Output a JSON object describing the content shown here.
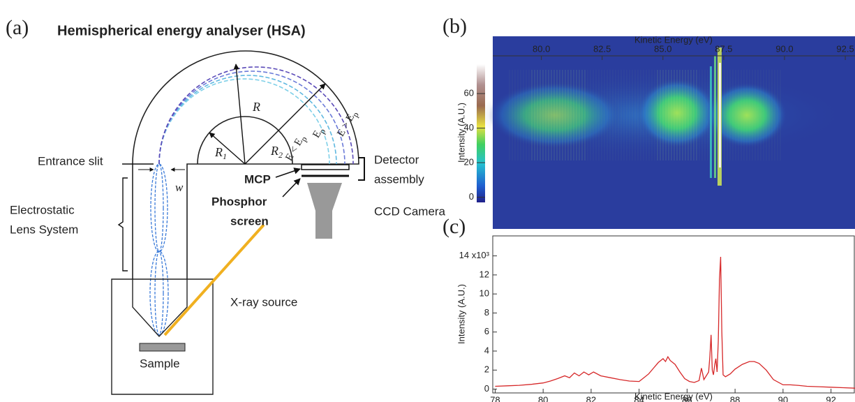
{
  "panel_a": {
    "label": "(a)",
    "title": "Hemispherical energy analyser (HSA)",
    "entrance_slit": "Entrance slit",
    "slit_width": "w",
    "lens_system": [
      "Electrostatic",
      "Lens System"
    ],
    "radius": "R",
    "inner_radius": {
      "main": "R",
      "sub": "1"
    },
    "outer_radius": {
      "main": "R",
      "sub": "2"
    },
    "trajectories": [
      {
        "main": "E < E",
        "sub": "p"
      },
      {
        "main": "E",
        "sub": "p"
      },
      {
        "main": "E > E",
        "sub": "p"
      }
    ],
    "mcp": "MCP",
    "phosphor_screen": [
      "Phosphor",
      "screen"
    ],
    "detector_assembly": [
      "Detector",
      "assembly"
    ],
    "ccd_camera": "CCD Camera",
    "xray_source": "X-ray source",
    "sample": "Sample"
  },
  "chart_data": [
    {
      "type": "heatmap",
      "panel_label": "(b)",
      "xlabel": "Kinetic Energy (eV)",
      "xlim": [
        78,
        92.9
      ],
      "xticks": [
        {
          "value": 80,
          "label": "80.0"
        },
        {
          "value": 82.5,
          "label": "82.5"
        },
        {
          "value": 85,
          "label": "85.0"
        },
        {
          "value": 87.5,
          "label": "87.5"
        },
        {
          "value": 90,
          "label": "90.0"
        },
        {
          "value": 92.5,
          "label": "92.5"
        }
      ],
      "colorbar": {
        "label": "Intensity (A.U.)",
        "lim": [
          -3,
          77
        ],
        "ticks": [
          0,
          20,
          40,
          60
        ]
      }
    },
    {
      "type": "line",
      "panel_label": "(c)",
      "xlabel": "Kinetic Energy (eV)",
      "ylabel": "Intensity (A.U.)",
      "color": "#d62728",
      "xlim": [
        77.9,
        93
      ],
      "ylim": [
        -0.4,
        16.1
      ],
      "xticks": [
        78,
        80,
        82,
        84,
        86,
        88,
        90,
        92
      ],
      "yticks": [
        0,
        2,
        4,
        6,
        8,
        10,
        12,
        {
          "value": 14,
          "label": "14 x10³"
        }
      ],
      "x": [
        78,
        78.5,
        79,
        79.5,
        80,
        80.3,
        80.6,
        80.9,
        81.1,
        81.3,
        81.5,
        81.7,
        81.9,
        82.1,
        82.4,
        82.8,
        83.2,
        83.6,
        84,
        84.2,
        84.4,
        84.6,
        84.8,
        85,
        85.1,
        85.2,
        85.3,
        85.5,
        85.7,
        85.9,
        86.1,
        86.3,
        86.5,
        86.6,
        86.7,
        86.8,
        86.9,
        86.95,
        87.0,
        87.05,
        87.1,
        87.15,
        87.2,
        87.25,
        87.3,
        87.35,
        87.4,
        87.45,
        87.5,
        87.6,
        87.8,
        88,
        88.3,
        88.6,
        88.8,
        89,
        89.3,
        89.6,
        90,
        90.3,
        90.6,
        91,
        91.5,
        92,
        92.5,
        93
      ],
      "values": [
        0.3,
        0.35,
        0.4,
        0.5,
        0.65,
        0.85,
        1.1,
        1.4,
        1.2,
        1.7,
        1.4,
        1.8,
        1.5,
        1.8,
        1.4,
        1.2,
        1.0,
        0.85,
        0.8,
        1.2,
        1.6,
        2.2,
        2.8,
        3.2,
        2.9,
        3.4,
        3.0,
        2.6,
        1.8,
        1.1,
        0.8,
        0.7,
        0.9,
        2.2,
        1.0,
        1.4,
        1.8,
        3.5,
        5.7,
        2.0,
        1.5,
        2.5,
        3.2,
        1.8,
        5.0,
        11.5,
        13.9,
        6.0,
        1.5,
        1.3,
        1.6,
        2.1,
        2.6,
        2.9,
        2.9,
        2.7,
        2.0,
        1.0,
        0.45,
        0.45,
        0.4,
        0.3,
        0.25,
        0.2,
        0.15,
        0.1
      ]
    }
  ]
}
